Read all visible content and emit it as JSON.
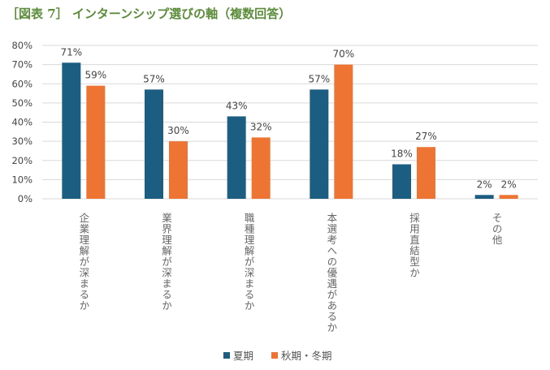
{
  "title": "［図表 7］ インターンシップ選びの軸（複数回答）",
  "chart_data": {
    "type": "bar",
    "title": "［図表 7］ インターンシップ選びの軸（複数回答）",
    "categories": [
      "企業理解が深まるか",
      "業界理解が深まるか",
      "職種理解が深まるか",
      "本選考への優遇があるか",
      "採用直結型か",
      "その他"
    ],
    "series": [
      {
        "name": "夏期",
        "color": "#1b5e82",
        "values": [
          71,
          57,
          43,
          57,
          18,
          2
        ]
      },
      {
        "name": "秋期・冬期",
        "color": "#ed7433",
        "values": [
          59,
          30,
          32,
          70,
          27,
          2
        ]
      }
    ],
    "ylim": [
      0,
      80
    ],
    "yticks": [
      "0%",
      "10%",
      "20%",
      "30%",
      "40%",
      "50%",
      "60%",
      "70%",
      "80%"
    ],
    "grid": true,
    "legend": "bottom"
  }
}
